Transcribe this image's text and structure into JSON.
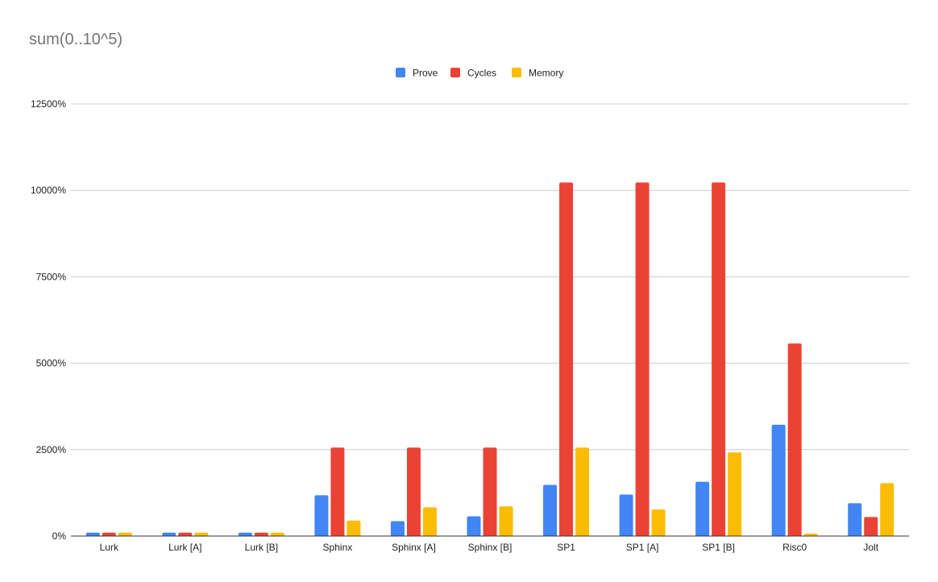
{
  "chart_data": {
    "type": "bar",
    "title": "sum(0..10^5)",
    "xlabel": "",
    "ylabel": "",
    "ylim": [
      0,
      12500
    ],
    "yticks": [
      "0%",
      "2500%",
      "5000%",
      "7500%",
      "10000%",
      "12500%"
    ],
    "ytick_values": [
      0,
      2500,
      5000,
      7500,
      10000,
      12500
    ],
    "grid": true,
    "legend_position": "top-center",
    "categories": [
      "Lurk",
      "Lurk [A]",
      "Lurk [B]",
      "Sphinx",
      "Sphinx [A]",
      "Sphinx [B]",
      "SP1",
      "SP1 [A]",
      "SP1 [B]",
      "Risc0",
      "Jolt"
    ],
    "series": [
      {
        "name": "Prove",
        "color": "#4285f4",
        "values": [
          100,
          100,
          100,
          1180,
          430,
          570,
          1480,
          1200,
          1570,
          3220,
          950
        ]
      },
      {
        "name": "Cycles",
        "color": "#ea4335",
        "values": [
          100,
          100,
          100,
          2560,
          2560,
          2560,
          10230,
          10230,
          10230,
          5570,
          550
        ]
      },
      {
        "name": "Memory",
        "color": "#fbbc04",
        "values": [
          100,
          100,
          100,
          450,
          830,
          860,
          2560,
          770,
          2420,
          70,
          1530
        ]
      }
    ]
  }
}
